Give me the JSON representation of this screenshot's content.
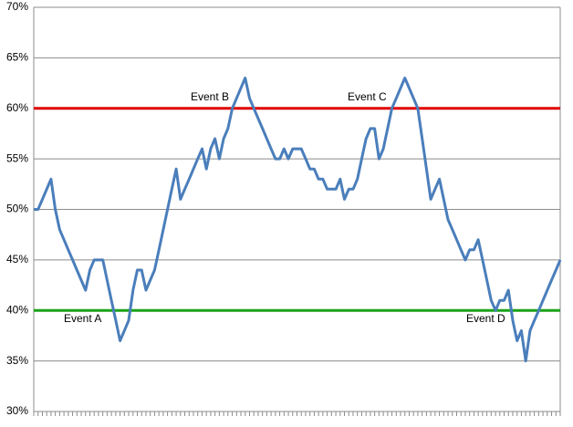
{
  "chart_data": {
    "type": "line",
    "series": [
      {
        "color": "#4a7ebb",
        "values": [
          50,
          50,
          51,
          52,
          53,
          50,
          48,
          47,
          46,
          45,
          44,
          43,
          42,
          44,
          45,
          45,
          45,
          43,
          41,
          39,
          37,
          38,
          39,
          42,
          44,
          44,
          42,
          43,
          44,
          46,
          48,
          50,
          52,
          54,
          51,
          52,
          53,
          54,
          55,
          56,
          54,
          56,
          57,
          55,
          57,
          58,
          60,
          61,
          62,
          63,
          61,
          60,
          59,
          58,
          57,
          56,
          55,
          55,
          56,
          55,
          56,
          56,
          56,
          55,
          54,
          54,
          53,
          53,
          52,
          52,
          52,
          53,
          51,
          52,
          52,
          53,
          55,
          57,
          58,
          58,
          55,
          56,
          58,
          60,
          61,
          62,
          63,
          62,
          61,
          60,
          57,
          54,
          51,
          52,
          53,
          51,
          49,
          48,
          47,
          46,
          45,
          46,
          46,
          47,
          45,
          43,
          41,
          40,
          41,
          41,
          42,
          39,
          37,
          38,
          35,
          38,
          39,
          40,
          41,
          42,
          43,
          44,
          45
        ]
      }
    ],
    "ylim": [
      30,
      70
    ],
    "yticks": [
      {
        "value": 30,
        "label": "30%"
      },
      {
        "value": 35,
        "label": "35%"
      },
      {
        "value": 40,
        "label": "40%"
      },
      {
        "value": 45,
        "label": "45%"
      },
      {
        "value": 50,
        "label": "50%"
      },
      {
        "value": 55,
        "label": "55%"
      },
      {
        "value": 60,
        "label": "60%"
      },
      {
        "value": 65,
        "label": "65%"
      },
      {
        "value": 70,
        "label": "70%"
      }
    ],
    "grid": true,
    "reference_lines": [
      {
        "value": 60,
        "color": "#e00000"
      },
      {
        "value": 40,
        "color": "#1aa31a"
      }
    ],
    "annotations": [
      "Event A",
      "Event B",
      "Event C",
      "Event D"
    ]
  }
}
